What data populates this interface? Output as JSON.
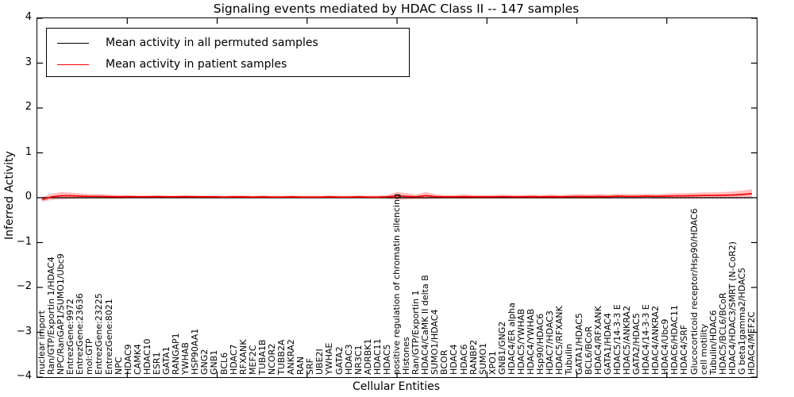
{
  "chart_data": {
    "type": "line",
    "title": "Signaling events mediated by HDAC Class II -- 147 samples",
    "xlabel": "Cellular Entities",
    "ylabel": "Inferred Activity",
    "ylim": [
      -4,
      4
    ],
    "yticks": [
      -4,
      -3,
      -2,
      -1,
      0,
      1,
      2,
      3,
      4
    ],
    "yticklabels": [
      "−4",
      "−3",
      "−2",
      "−1",
      "0",
      "1",
      "2",
      "3",
      "4"
    ],
    "grid": false,
    "legend_position": "upper left",
    "zero_line_style": "dotted",
    "zero_line_value": 0,
    "categories": [
      "nuclear import",
      "Ran/GTP/Exportin 1/HDAC4",
      "NPC/RanGAP1/SUMO1/Ubc9",
      "EntrezGene:9972",
      "EntrezGene:23636",
      "mol:GTP",
      "EntrezGene:23225",
      "EntrezGene:8021",
      "NPC",
      "HDAC9",
      "CAMK4",
      "HDAC10",
      "ESR1",
      "GATA1",
      "RANGAP1",
      "YWHAB",
      "HSP90AA1",
      "GNG2",
      "GNB1",
      "BCL6",
      "HDAC7",
      "RFXANK",
      "MEF2C",
      "TUBA1B",
      "NCOR2",
      "TUBB2A",
      "ANKRA2",
      "RAN",
      "SRF",
      "UBE2I",
      "YWHAE",
      "GATA2",
      "HDAC3",
      "NR3C1",
      "ADRBK1",
      "HDAC11",
      "HDAC5",
      "positive regulation of chromatin silencing",
      "Histones",
      "Ran/GTP/Exportin 1",
      "HDAC4/CaMK II delta B",
      "SUMO1/HDAC4",
      "BCOR",
      "HDAC4",
      "HDAC6",
      "RANBP2",
      "SUMO1",
      "XPO1",
      "GNB1/GNG2",
      "HDAC4/ER alpha",
      "HDAC5/YWHAB",
      "HDAC4/YWHAB",
      "Hsp90/HDAC6",
      "HDAC7/HDAC3",
      "HDAC5/RFXANK",
      "Tubulin",
      "GATA1/HDAC5",
      "BCL6/BCoR",
      "HDAC4/RFXANK",
      "GATA1/HDAC4",
      "HDAC5/14-3-3 E",
      "HDAC5/ANKRA2",
      "GATA2/HDAC5",
      "HDAC4/14-3-3 E",
      "HDAC4/ANKRA2",
      "HDAC4/Ubc9",
      "HDAC6/HDAC11",
      "HDAC4/SRF",
      "Glucocorticoid receptor/Hsp90/HDAC6",
      "cell motility",
      "Tubulin/HDAC6",
      "HDAC5/BCL6/BCoR",
      "HDAC4/HDAC3/SMRT (N-CoR2)",
      "G beta1gamma2/HDAC5",
      "HDAC4/MEF2C"
    ],
    "series": [
      {
        "name": "Mean activity in all permuted samples",
        "color": "#000000",
        "values": [
          0,
          0,
          0,
          0,
          0,
          0,
          0,
          0,
          0,
          0,
          0,
          0,
          0,
          0,
          0,
          0,
          0,
          0,
          0,
          0,
          0,
          0,
          0,
          0,
          0,
          0,
          0,
          0,
          0,
          0,
          0,
          0,
          0,
          0,
          0,
          0,
          0,
          0,
          0,
          0,
          0,
          0,
          0,
          0,
          0,
          0,
          0,
          0,
          0,
          0,
          0,
          0,
          0,
          0,
          0,
          0,
          0,
          0,
          0,
          0,
          0,
          0,
          0,
          0,
          0,
          0,
          0,
          0,
          0,
          0,
          0,
          0,
          0,
          0,
          0
        ]
      },
      {
        "name": "Mean activity in patient samples",
        "color": "#ff0000",
        "values": [
          -0.04,
          0.02,
          0.045,
          0.045,
          0.035,
          0.03,
          0.03,
          0.025,
          0.02,
          0.025,
          0.02,
          0.02,
          0.025,
          0.02,
          0.02,
          0.025,
          0.02,
          0.02,
          0.02,
          0.015,
          0.02,
          0.02,
          0.015,
          0.02,
          0.015,
          0.015,
          0.02,
          0.015,
          0.015,
          0.015,
          0.02,
          0.015,
          0.015,
          0.02,
          0.015,
          0.015,
          0.02,
          0.04,
          0.03,
          0.02,
          0.045,
          0.025,
          0.02,
          0.02,
          0.025,
          0.02,
          0.02,
          0.02,
          0.025,
          0.02,
          0.02,
          0.025,
          0.02,
          0.025,
          0.02,
          0.025,
          0.03,
          0.025,
          0.03,
          0.025,
          0.035,
          0.03,
          0.03,
          0.035,
          0.03,
          0.035,
          0.04,
          0.04,
          0.045,
          0.05,
          0.05,
          0.055,
          0.06,
          0.07,
          0.09
        ],
        "band_halfwidth": [
          0.05,
          0.07,
          0.08,
          0.07,
          0.06,
          0.05,
          0.05,
          0.04,
          0.04,
          0.03,
          0.03,
          0.03,
          0.03,
          0.03,
          0.03,
          0.03,
          0.03,
          0.03,
          0.03,
          0.03,
          0.03,
          0.03,
          0.03,
          0.03,
          0.03,
          0.03,
          0.03,
          0.03,
          0.03,
          0.03,
          0.03,
          0.03,
          0.03,
          0.03,
          0.03,
          0.03,
          0.04,
          0.09,
          0.07,
          0.05,
          0.08,
          0.05,
          0.04,
          0.04,
          0.05,
          0.04,
          0.04,
          0.04,
          0.04,
          0.04,
          0.04,
          0.04,
          0.04,
          0.045,
          0.04,
          0.045,
          0.05,
          0.045,
          0.05,
          0.045,
          0.05,
          0.05,
          0.05,
          0.05,
          0.05,
          0.055,
          0.06,
          0.06,
          0.065,
          0.07,
          0.07,
          0.075,
          0.08,
          0.09,
          0.1
        ],
        "band_color": "rgba(255,0,0,0.25)"
      }
    ]
  }
}
